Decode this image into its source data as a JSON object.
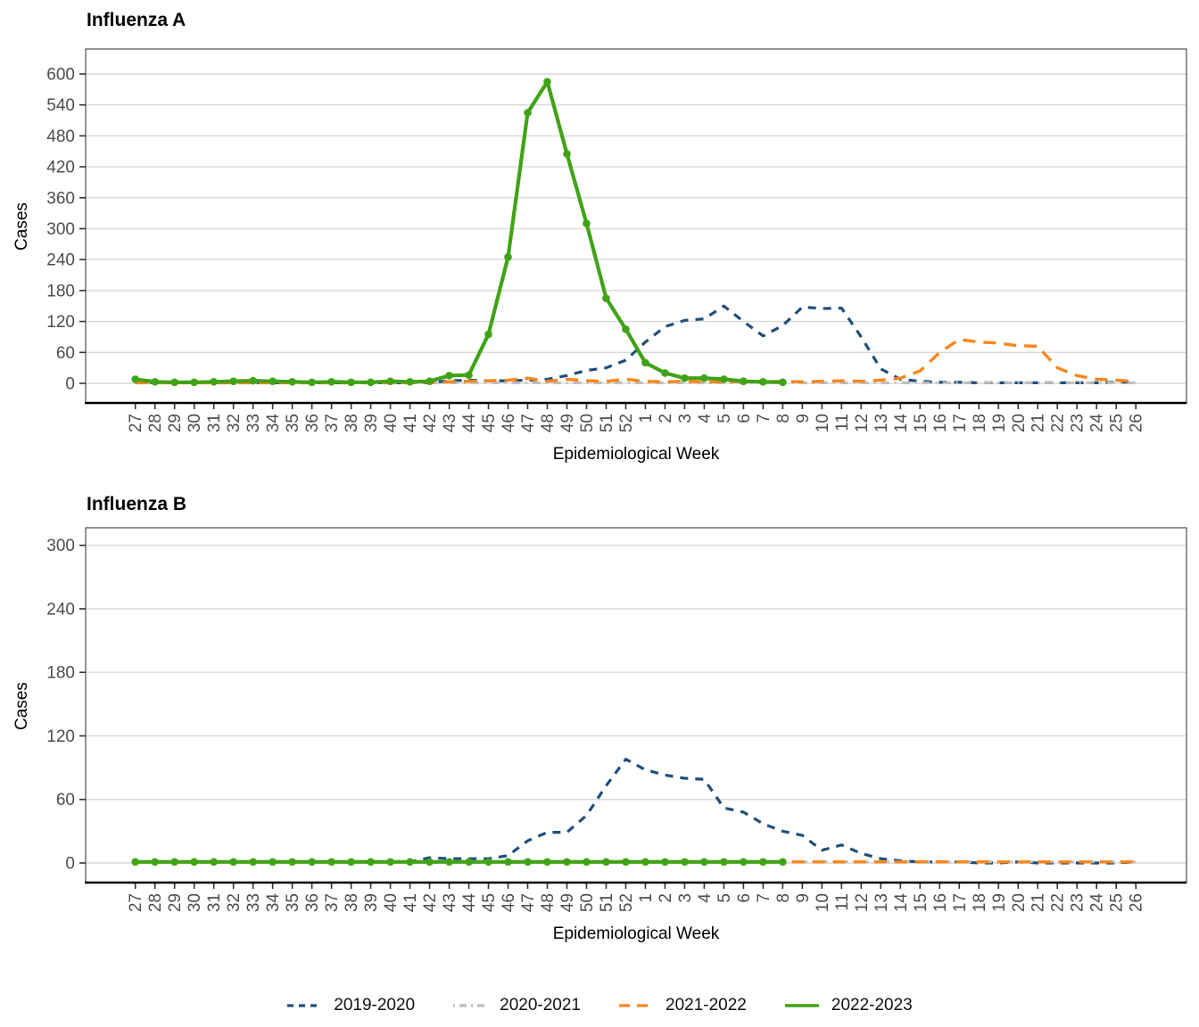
{
  "page": {
    "background": "#ffffff"
  },
  "legend_order": [
    "2019-2020",
    "2020-2021",
    "2021-2022",
    "2022-2023"
  ],
  "chart_data": [
    {
      "type": "line",
      "title": "Influenza A",
      "x_axis": {
        "label": "Epidemiological Week",
        "categories": [
          "27",
          "28",
          "29",
          "30",
          "31",
          "32",
          "33",
          "34",
          "35",
          "36",
          "37",
          "38",
          "39",
          "40",
          "41",
          "42",
          "43",
          "44",
          "45",
          "46",
          "47",
          "48",
          "49",
          "50",
          "51",
          "52",
          "1",
          "2",
          "3",
          "4",
          "5",
          "6",
          "7",
          "8",
          "9",
          "10",
          "11",
          "12",
          "13",
          "14",
          "15",
          "16",
          "17",
          "18",
          "19",
          "20",
          "21",
          "22",
          "23",
          "24",
          "25",
          "26"
        ]
      },
      "y_axis": {
        "label": "Cases",
        "min": 0,
        "max": 600,
        "ticks": [
          0,
          60,
          120,
          180,
          240,
          300,
          360,
          420,
          480,
          540,
          600
        ]
      },
      "grid": "horizontal-only",
      "series": [
        {
          "name": "2019-2020",
          "color": "#1F4E79",
          "style": "dashed",
          "marker": false,
          "values": [
            1,
            1,
            1,
            1,
            1,
            1,
            1,
            1,
            1,
            1,
            1,
            1,
            1,
            1,
            1,
            1,
            5,
            6,
            5,
            5,
            6,
            8,
            15,
            25,
            30,
            45,
            80,
            110,
            122,
            125,
            150,
            120,
            92,
            112,
            148,
            145,
            146,
            90,
            28,
            8,
            4,
            2,
            2,
            1,
            1,
            1,
            1,
            1,
            1,
            1,
            2,
            3
          ]
        },
        {
          "name": "2020-2021",
          "color": "#BDBDBD",
          "style": "dotdash",
          "marker": false,
          "values": [
            1,
            1,
            1,
            1,
            1,
            1,
            1,
            1,
            1,
            1,
            1,
            1,
            1,
            1,
            1,
            1,
            1,
            1,
            1,
            1,
            1,
            1,
            1,
            1,
            1,
            1,
            1,
            1,
            1,
            1,
            1,
            1,
            1,
            1,
            1,
            1,
            1,
            1,
            1,
            1,
            1,
            1,
            1,
            1,
            1,
            1,
            1,
            1,
            1,
            1,
            1,
            1
          ]
        },
        {
          "name": "2021-2022",
          "color": "#F8861B",
          "style": "longdash",
          "marker": false,
          "values": [
            1,
            1,
            1,
            1,
            1,
            1,
            1,
            1,
            1,
            1,
            1,
            1,
            1,
            1,
            1,
            2,
            3,
            4,
            5,
            6,
            10,
            4,
            8,
            5,
            4,
            8,
            4,
            3,
            4,
            3,
            3,
            4,
            3,
            4,
            3,
            4,
            5,
            4,
            6,
            10,
            24,
            60,
            85,
            80,
            78,
            73,
            72,
            30,
            15,
            8,
            6,
            4
          ]
        },
        {
          "name": "2022-2023",
          "color": "#40A317",
          "style": "solid",
          "marker": true,
          "values": [
            8,
            3,
            2,
            2,
            3,
            4,
            5,
            4,
            3,
            2,
            3,
            2,
            2,
            4,
            3,
            4,
            15,
            16,
            95,
            245,
            525,
            585,
            445,
            310,
            165,
            105,
            40,
            20,
            10,
            10,
            8,
            4,
            3,
            2,
            null,
            null,
            null,
            null,
            null,
            null,
            null,
            null,
            null,
            null,
            null,
            null,
            null,
            null,
            null,
            null,
            null,
            null
          ]
        }
      ]
    },
    {
      "type": "line",
      "title": "Influenza B",
      "x_axis": {
        "label": "Epidemiological Week",
        "categories": [
          "27",
          "28",
          "29",
          "30",
          "31",
          "32",
          "33",
          "34",
          "35",
          "36",
          "37",
          "38",
          "39",
          "40",
          "41",
          "42",
          "43",
          "44",
          "45",
          "46",
          "47",
          "48",
          "49",
          "50",
          "51",
          "52",
          "1",
          "2",
          "3",
          "4",
          "5",
          "6",
          "7",
          "8",
          "9",
          "10",
          "11",
          "12",
          "13",
          "14",
          "15",
          "16",
          "17",
          "18",
          "19",
          "20",
          "21",
          "22",
          "23",
          "24",
          "25",
          "26"
        ]
      },
      "y_axis": {
        "label": "Cases",
        "min": 0,
        "max": 300,
        "ticks": [
          0,
          60,
          120,
          180,
          240,
          300
        ]
      },
      "grid": "horizontal-only",
      "series": [
        {
          "name": "2019-2020",
          "color": "#1F4E79",
          "style": "dashed",
          "marker": false,
          "values": [
            1,
            1,
            1,
            1,
            1,
            1,
            1,
            1,
            1,
            1,
            1,
            1,
            1,
            1,
            1,
            5,
            4,
            4,
            4,
            7,
            21,
            29,
            29,
            45,
            73,
            98,
            88,
            83,
            80,
            79,
            52,
            48,
            37,
            30,
            26,
            12,
            17,
            9,
            4,
            2,
            1,
            1,
            1,
            0,
            0,
            1,
            0,
            0,
            0,
            0,
            0,
            1
          ]
        },
        {
          "name": "2020-2021",
          "color": "#BDBDBD",
          "style": "dotdash",
          "marker": false,
          "values": [
            1,
            1,
            1,
            1,
            1,
            1,
            1,
            1,
            1,
            1,
            1,
            1,
            1,
            1,
            1,
            1,
            1,
            1,
            1,
            1,
            1,
            1,
            1,
            1,
            1,
            1,
            1,
            1,
            1,
            1,
            1,
            1,
            1,
            1,
            1,
            1,
            1,
            1,
            1,
            1,
            1,
            1,
            1,
            1,
            1,
            1,
            1,
            1,
            1,
            1,
            1,
            1
          ]
        },
        {
          "name": "2021-2022",
          "color": "#F8861B",
          "style": "longdash",
          "marker": false,
          "values": [
            1,
            1,
            1,
            1,
            1,
            1,
            1,
            1,
            1,
            1,
            1,
            1,
            1,
            1,
            1,
            1,
            1,
            1,
            1,
            1,
            1,
            1,
            1,
            1,
            1,
            1,
            1,
            1,
            1,
            1,
            1,
            1,
            1,
            1,
            1,
            1,
            1,
            1,
            1,
            1,
            1,
            1,
            1,
            1,
            1,
            1,
            1,
            1,
            1,
            1,
            1,
            1
          ]
        },
        {
          "name": "2022-2023",
          "color": "#40A317",
          "style": "solid",
          "marker": true,
          "values": [
            1,
            1,
            1,
            1,
            1,
            1,
            1,
            1,
            1,
            1,
            1,
            1,
            1,
            1,
            1,
            1,
            1,
            1,
            1,
            1,
            1,
            1,
            1,
            1,
            1,
            1,
            1,
            1,
            1,
            1,
            1,
            1,
            1,
            1,
            null,
            null,
            null,
            null,
            null,
            null,
            null,
            null,
            null,
            null,
            null,
            null,
            null,
            null,
            null,
            null,
            null,
            null
          ]
        }
      ]
    }
  ]
}
